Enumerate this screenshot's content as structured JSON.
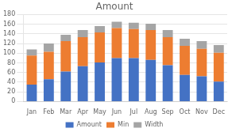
{
  "chart_data": {
    "type": "bar",
    "title": "Amount",
    "categories": [
      "Jan",
      "Feb",
      "Mar",
      "Apr",
      "May",
      "Jun",
      "Jul",
      "Aug",
      "Sep",
      "Oct",
      "Nov",
      "Dec"
    ],
    "series": [
      {
        "name": "Amount",
        "color": "#4472c4",
        "values": [
          35,
          46,
          62,
          73,
          81,
          90,
          90,
          86,
          75,
          55,
          52,
          41
        ]
      },
      {
        "name": "Min",
        "color": "#ed7d31",
        "values": [
          60,
          57,
          63,
          60,
          62,
          62,
          60,
          62,
          58,
          60,
          57,
          60
        ]
      },
      {
        "name": "Width",
        "color": "#a5a5a5",
        "values": [
          13,
          17,
          13,
          15,
          13,
          13,
          13,
          13,
          15,
          15,
          16,
          16
        ]
      }
    ],
    "ylim": [
      0,
      180
    ],
    "yticks": [
      0,
      20,
      40,
      60,
      80,
      100,
      120,
      140,
      160,
      180
    ],
    "grid": true,
    "stacked": true,
    "legend": "bottom"
  }
}
